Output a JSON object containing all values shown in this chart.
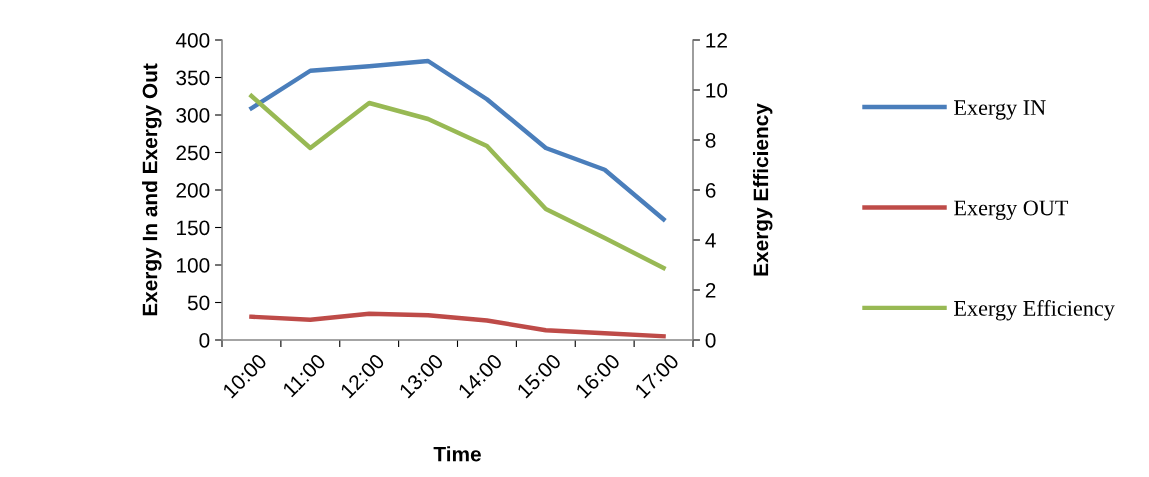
{
  "chart_data": {
    "type": "line",
    "xlabel": "Time",
    "ylabel": "Exergy In and Exergy Out",
    "y2label": "Exergy Efficiency",
    "categories": [
      "10:00",
      "11:00",
      "12:00",
      "13:00",
      "14:00",
      "15:00",
      "16:00",
      "17:00"
    ],
    "series": [
      {
        "name": "Exergy IN",
        "color": "#4a7ebb",
        "values": [
          309,
          359,
          365,
          372,
          321,
          256,
          227,
          161
        ]
      },
      {
        "name": "Exergy OUT",
        "color": "#be4b48",
        "values": [
          31,
          27,
          35,
          33,
          26,
          13,
          9,
          5
        ]
      },
      {
        "name": "Exergy Efficiency",
        "color": "#98b954",
        "axis": "y2",
        "values": [
          9.76,
          7.68,
          9.48,
          8.84,
          7.76,
          5.24,
          4.08,
          2.88
        ]
      }
    ],
    "ylim": [
      0,
      400
    ],
    "yticks": [
      0,
      50,
      100,
      150,
      200,
      250,
      300,
      350,
      400
    ],
    "y2lim": [
      0,
      12
    ],
    "y2ticks": [
      0,
      2,
      4,
      6,
      8,
      10,
      12
    ],
    "grid": false,
    "legend": "right",
    "marker": "none",
    "line_style": "solid"
  }
}
